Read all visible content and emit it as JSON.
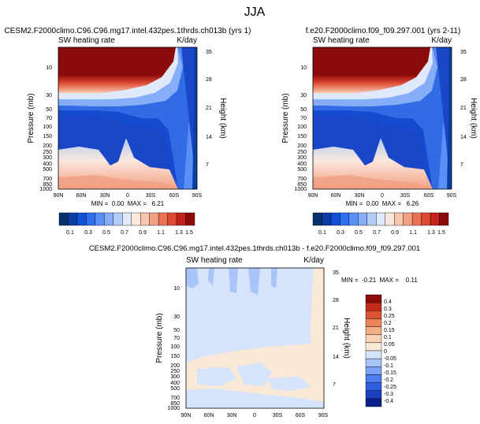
{
  "page_title": "JJA",
  "colors": {
    "top_palette": [
      "#08306b",
      "#0a3ea6",
      "#1250d6",
      "#2e6ef0",
      "#5a8ff5",
      "#86adf7",
      "#b4cdf8",
      "#dfe9fb",
      "#fbe7dc",
      "#f8c6ae",
      "#f2a083",
      "#ea7356",
      "#dd4a32",
      "#c2241a",
      "#8c0a0a"
    ],
    "diff_palette": [
      "#0a1f8a",
      "#1c3fbf",
      "#2f5fe0",
      "#4d7ef0",
      "#7aa2f6",
      "#a8c4f9",
      "#d5e3fb",
      "#fbe9d8",
      "#f9d2b5",
      "#f4ad85",
      "#ec8258",
      "#dc5533",
      "#c32b19",
      "#8e0c0c"
    ]
  },
  "chart_data": [
    {
      "type": "heatmap",
      "title": "CESM2.F2000climo.C96.C96.mg17.intel.432pes.1thrds.ch013b (yrs 1)",
      "left_label": "SW heating rate",
      "units": "K/day",
      "xlabel": "",
      "ylabel": "Pressure (mb)",
      "ylabel_right": "Height (km)",
      "x_ticks": [
        "90N",
        "60N",
        "30N",
        "0",
        "30S",
        "60S",
        "90S"
      ],
      "x_range": [
        90,
        -90
      ],
      "y_ticks": [
        10,
        30,
        50,
        70,
        100,
        150,
        200,
        250,
        300,
        400,
        500,
        700,
        850,
        1000
      ],
      "y_range_mb": [
        1000,
        3
      ],
      "height_ticks_km": [
        7,
        14,
        21,
        28,
        35
      ],
      "stats": "MIN =  0.00  MAX =   6.21",
      "colorbar_labels": [
        "0.1",
        "0.3",
        "0.5",
        "0.7",
        "0.9",
        "1.1",
        "1.3",
        "1.5"
      ],
      "colorbar_levels": [
        0.1,
        0.2,
        0.3,
        0.4,
        0.5,
        0.6,
        0.7,
        0.8,
        0.9,
        1.0,
        1.1,
        1.2,
        1.3,
        1.4,
        1.5
      ],
      "min": 0.0,
      "max": 6.21
    },
    {
      "type": "heatmap",
      "title": "f.e20.F2000climo.f09_f09.297.001 (yrs 2-11)",
      "left_label": "SW heating rate",
      "units": "K/day",
      "xlabel": "",
      "ylabel": "Pressure (mb)",
      "ylabel_right": "Height (km)",
      "x_ticks": [
        "90N",
        "60N",
        "30N",
        "0",
        "30S",
        "60S",
        "90S"
      ],
      "x_range": [
        90,
        -90
      ],
      "y_ticks": [
        10,
        30,
        50,
        70,
        100,
        150,
        200,
        250,
        300,
        400,
        500,
        700,
        850,
        1000
      ],
      "y_range_mb": [
        1000,
        3
      ],
      "height_ticks_km": [
        7,
        14,
        21,
        28,
        35
      ],
      "stats": "MIN =  0.00  MAX =   6.26",
      "colorbar_labels": [
        "0.1",
        "0.3",
        "0.5",
        "0.7",
        "0.9",
        "1.1",
        "1.3",
        "1.5"
      ],
      "colorbar_levels": [
        0.1,
        0.2,
        0.3,
        0.4,
        0.5,
        0.6,
        0.7,
        0.8,
        0.9,
        1.0,
        1.1,
        1.2,
        1.3,
        1.4,
        1.5
      ],
      "min": 0.0,
      "max": 6.26
    },
    {
      "type": "heatmap",
      "title": "CESM2.F2000climo.C96.C96.mg17.intel.432pes.1thrds.ch013b - f.e20.F2000climo.f09_f09.297.001",
      "left_label": "SW heating rate",
      "units": "K/day",
      "xlabel": "",
      "ylabel": "Pressure (mb)",
      "ylabel_right": "Height (km)",
      "x_ticks": [
        "90N",
        "60N",
        "30N",
        "0",
        "30S",
        "60S",
        "90S"
      ],
      "x_range": [
        90,
        -90
      ],
      "y_ticks": [
        10,
        30,
        50,
        70,
        100,
        150,
        200,
        250,
        300,
        400,
        500,
        700,
        850,
        1000
      ],
      "y_range_mb": [
        1000,
        3
      ],
      "height_ticks_km": [
        7,
        14,
        21,
        28,
        35
      ],
      "stats": "MIN =  -0.21  MAX =    0.11",
      "colorbar_labels": [
        "0.4",
        "0.3",
        "0.25",
        "0.2",
        "0.15",
        "0.1",
        "0.05",
        "0",
        "-0.05",
        "-0.1",
        "-0.15",
        "-0.2",
        "-0.25",
        "-0.3",
        "-0.4"
      ],
      "colorbar_levels": [
        -0.4,
        -0.3,
        -0.25,
        -0.2,
        -0.15,
        -0.1,
        -0.05,
        0,
        0.05,
        0.1,
        0.15,
        0.2,
        0.25,
        0.3,
        0.4
      ],
      "min": -0.21,
      "max": 0.11
    }
  ]
}
